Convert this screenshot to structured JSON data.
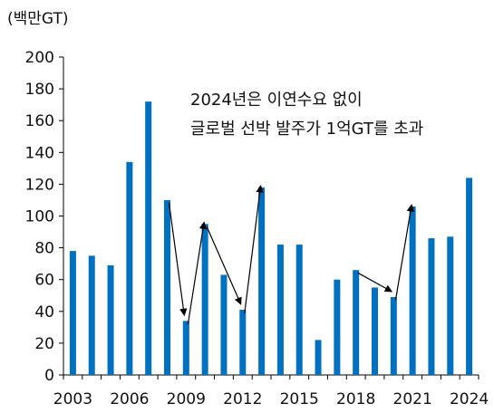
{
  "unit_label": "(백만GT)",
  "annotation": {
    "line1": "2024년은 이연수요 없이",
    "line2": "글로벌 선박 발주가 1억GT를 초과"
  },
  "colors": {
    "bar": "#0070c0",
    "axis": "#000000",
    "text": "#111111"
  },
  "chart_data": {
    "type": "bar",
    "title": "",
    "xlabel": "",
    "ylabel": "(백만GT)",
    "ylim": [
      0,
      200
    ],
    "y_ticks": [
      0,
      20,
      40,
      60,
      80,
      100,
      120,
      140,
      160,
      180,
      200
    ],
    "x_tick_labels": [
      "2003",
      "2006",
      "2009",
      "2012",
      "2015",
      "2018",
      "2021",
      "2024"
    ],
    "grid": false,
    "categories": [
      "2003",
      "2004",
      "2005",
      "2006",
      "2007",
      "2008",
      "2009",
      "2010",
      "2011",
      "2012",
      "2013",
      "2014",
      "2015",
      "2016",
      "2017",
      "2018",
      "2019",
      "2020",
      "2021",
      "2022",
      "2023",
      "2024"
    ],
    "values": [
      78,
      75,
      69,
      134,
      172,
      110,
      34,
      95,
      63,
      41,
      118,
      82,
      82,
      22,
      60,
      66,
      55,
      49,
      106,
      86,
      87,
      124
    ],
    "arrows": [
      {
        "from": "2008",
        "to": "2009"
      },
      {
        "from": "2009",
        "to": "2010"
      },
      {
        "from": "2010",
        "to": "2012"
      },
      {
        "from": "2012",
        "to": "2013"
      },
      {
        "from": "2018",
        "to": "2020"
      },
      {
        "from": "2020",
        "to": "2021"
      }
    ]
  }
}
